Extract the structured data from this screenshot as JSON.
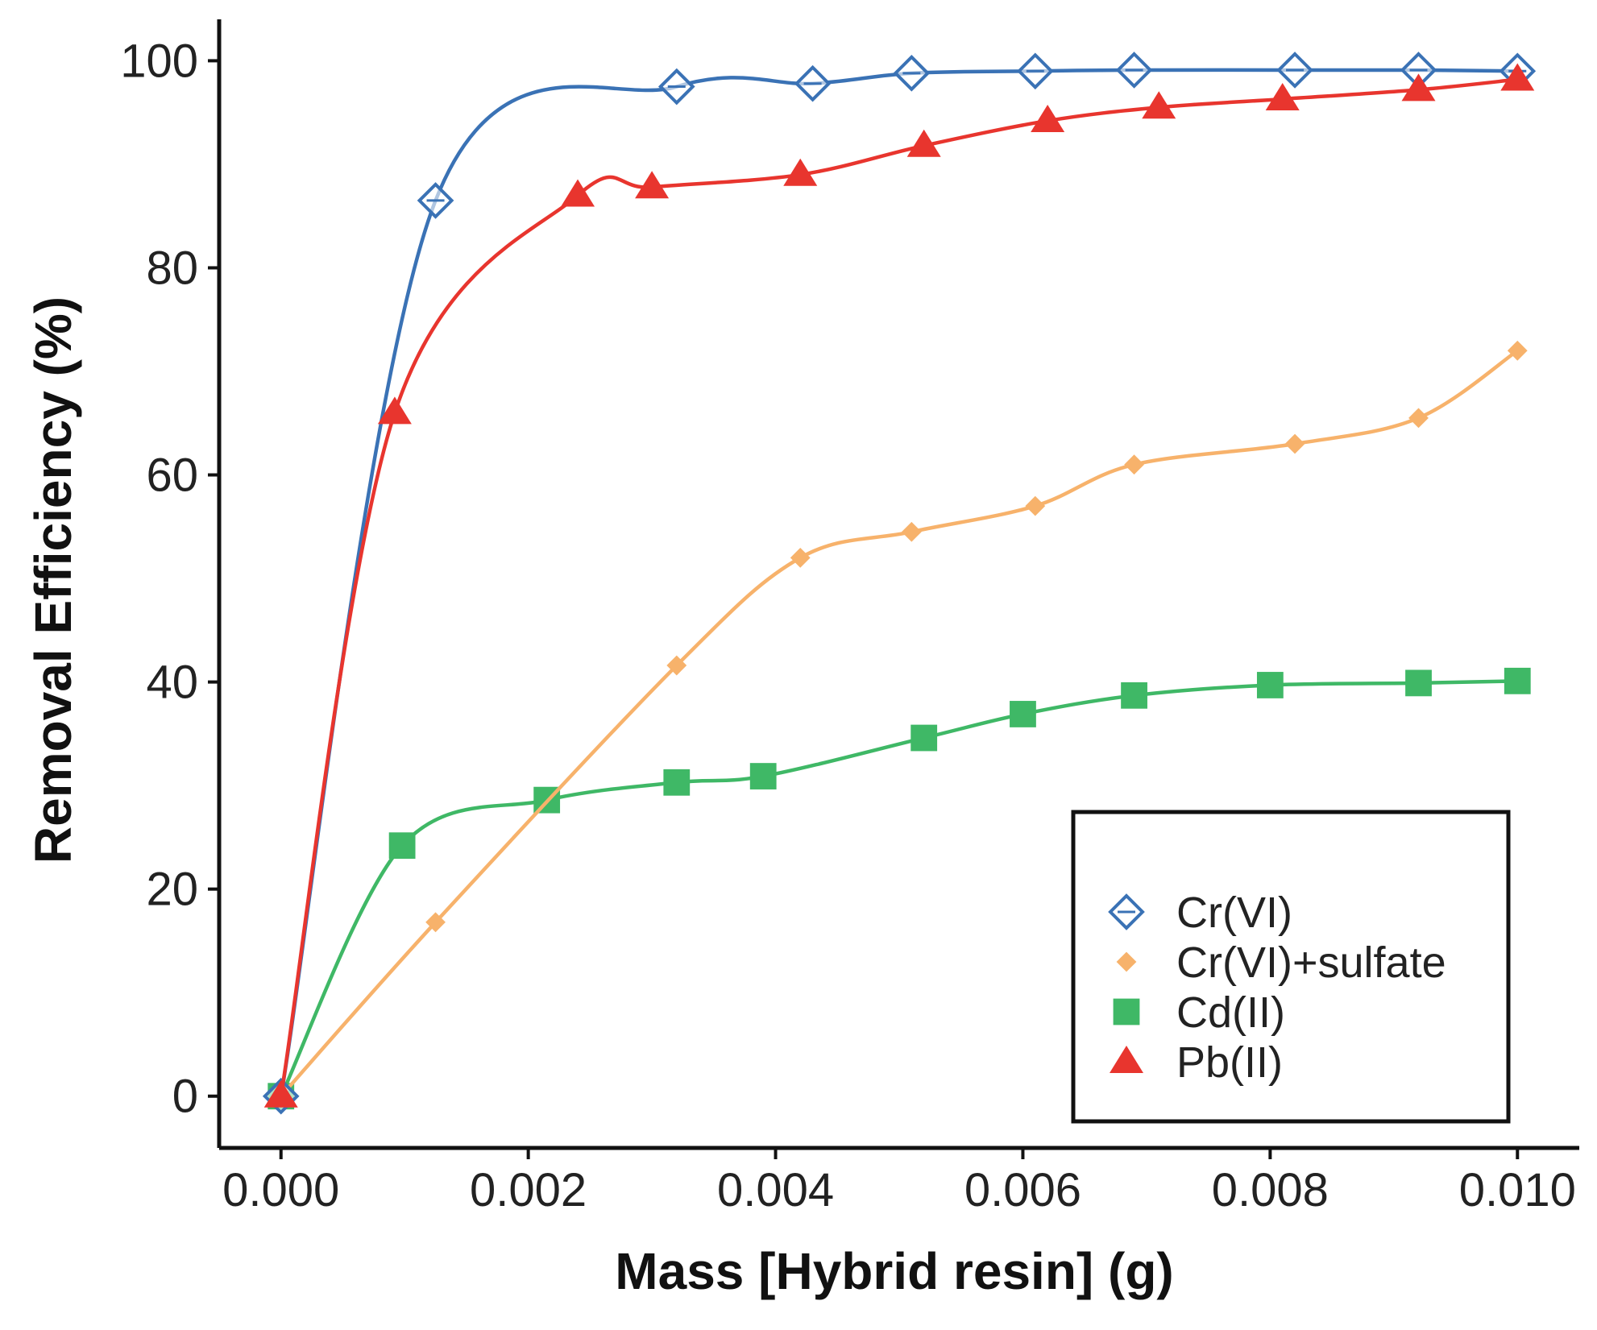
{
  "chart_data": {
    "type": "line",
    "title": "",
    "xlabel": "Mass [Hybrid resin] (g)",
    "ylabel": "Removal Efficiency (%)",
    "xlim": [
      -0.0005,
      0.0105
    ],
    "ylim": [
      -5,
      104
    ],
    "x_ticks": [
      0.0,
      0.002,
      0.004,
      0.006,
      0.008,
      0.01
    ],
    "x_tick_labels": [
      "0.000",
      "0.002",
      "0.004",
      "0.006",
      "0.008",
      "0.010"
    ],
    "y_ticks": [
      0,
      20,
      40,
      60,
      80,
      100
    ],
    "y_tick_labels": [
      "0",
      "20",
      "40",
      "60",
      "80",
      "100"
    ],
    "grid": false,
    "legend_position": "bottom-right",
    "series": [
      {
        "name": "Cr(VI)",
        "marker": "diamond-open",
        "color": "#3a72b5",
        "points": [
          [
            0.0,
            0
          ],
          [
            0.00125,
            86.5
          ],
          [
            0.0032,
            97.5
          ],
          [
            0.0043,
            97.8
          ],
          [
            0.0051,
            98.8
          ],
          [
            0.0061,
            99.0
          ],
          [
            0.0069,
            99.1
          ],
          [
            0.0082,
            99.1
          ],
          [
            0.0092,
            99.1
          ],
          [
            0.01,
            99.0
          ]
        ]
      },
      {
        "name": "Cr(VI)+sulfate",
        "marker": "diamond-filled",
        "color": "#f7b26b",
        "points": [
          [
            0.0,
            0
          ],
          [
            0.00125,
            16.8
          ],
          [
            0.0032,
            41.6
          ],
          [
            0.0042,
            52.0
          ],
          [
            0.0051,
            54.5
          ],
          [
            0.0061,
            57.0
          ],
          [
            0.0069,
            61.0
          ],
          [
            0.0082,
            63.0
          ],
          [
            0.0092,
            65.5
          ],
          [
            0.01,
            72.0
          ]
        ]
      },
      {
        "name": "Cd(II)",
        "marker": "square",
        "color": "#3fb866",
        "points": [
          [
            0.0,
            0
          ],
          [
            0.00098,
            24.2
          ],
          [
            0.00215,
            28.6
          ],
          [
            0.0032,
            30.3
          ],
          [
            0.0039,
            30.9
          ],
          [
            0.0052,
            34.6
          ],
          [
            0.006,
            36.9
          ],
          [
            0.0069,
            38.7
          ],
          [
            0.008,
            39.7
          ],
          [
            0.0092,
            39.9
          ],
          [
            0.01,
            40.1
          ]
        ]
      },
      {
        "name": "Pb(II)",
        "marker": "triangle",
        "color": "#e8352e",
        "points": [
          [
            0.0,
            0
          ],
          [
            0.00092,
            66.0
          ],
          [
            0.0024,
            87.0
          ],
          [
            0.003,
            87.8
          ],
          [
            0.0042,
            89.0
          ],
          [
            0.0052,
            91.8
          ],
          [
            0.0062,
            94.2
          ],
          [
            0.0071,
            95.5
          ],
          [
            0.0081,
            96.3
          ],
          [
            0.0092,
            97.2
          ],
          [
            0.01,
            98.2
          ]
        ]
      }
    ]
  }
}
